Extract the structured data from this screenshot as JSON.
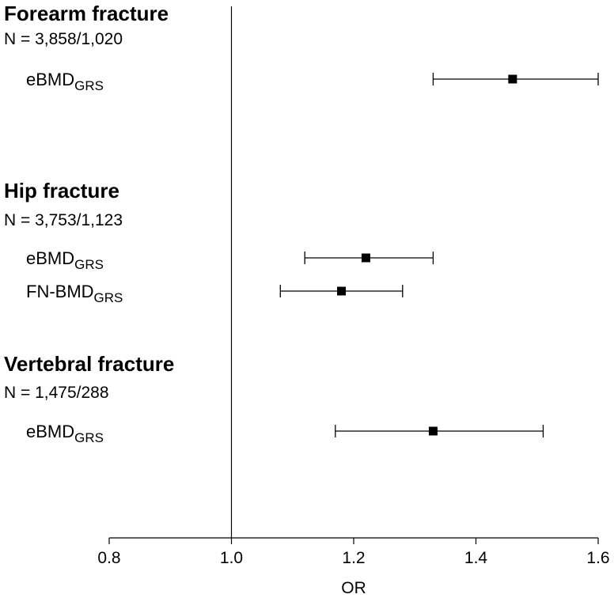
{
  "chart_data": {
    "type": "forest",
    "xlabel": "OR",
    "xlim": [
      0.8,
      1.6
    ],
    "xticks": [
      "0.8",
      "1.0",
      "1.2",
      "1.4",
      "1.6"
    ],
    "reference_line": 1.0,
    "marker_color": "#000000",
    "groups": [
      {
        "title": "Forearm fracture",
        "n": "N = 3,858/1,020",
        "rows": [
          {
            "label_main": "eBMD",
            "label_sub": "GRS",
            "or": 1.46,
            "ci_low": 1.33,
            "ci_high": 1.6
          }
        ]
      },
      {
        "title": "Hip fracture",
        "n": "N = 3,753/1,123",
        "rows": [
          {
            "label_main": "eBMD",
            "label_sub": "GRS",
            "or": 1.22,
            "ci_low": 1.12,
            "ci_high": 1.33
          },
          {
            "label_main": "FN-BMD",
            "label_sub": "GRS",
            "or": 1.18,
            "ci_low": 1.08,
            "ci_high": 1.28
          }
        ]
      },
      {
        "title": "Vertebral fracture",
        "n": "N = 1,475/288",
        "rows": [
          {
            "label_main": "eBMD",
            "label_sub": "GRS",
            "or": 1.33,
            "ci_low": 1.17,
            "ci_high": 1.51
          }
        ]
      }
    ]
  }
}
